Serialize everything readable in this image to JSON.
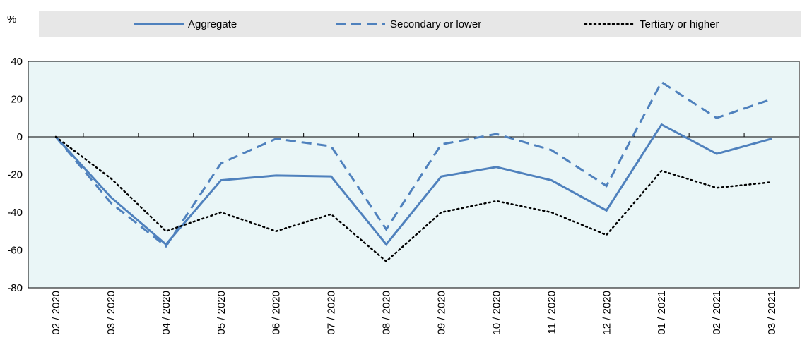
{
  "chart_data": {
    "type": "line",
    "unit_label": "%",
    "title": "",
    "xlabel": "",
    "ylabel": "",
    "categories": [
      "02 / 2020",
      "03 / 2020",
      "04 / 2020",
      "05 / 2020",
      "06 / 2020",
      "07 / 2020",
      "08 / 2020",
      "09 / 2020",
      "10 / 2020",
      "11 / 2020",
      "12 / 2020",
      "01 / 2021",
      "02 / 2021",
      "03 / 2021"
    ],
    "ylim": [
      -80,
      40
    ],
    "yticks": [
      "40",
      "20",
      "0",
      "-20",
      "-40",
      "-60",
      "-80"
    ],
    "grid": false,
    "legend_position": "top",
    "series": [
      {
        "name": "Aggregate",
        "style": "solid",
        "color": "#4f81bd",
        "values": [
          0,
          -32,
          -57,
          -23,
          -20.5,
          -21,
          -57,
          -21,
          -16,
          -23,
          -39,
          6.5,
          -9,
          -1
        ]
      },
      {
        "name": "Secondary or lower",
        "style": "dashed",
        "color": "#4f81bd",
        "values": [
          0,
          -35,
          -58,
          -14,
          -1,
          -5,
          -49,
          -4,
          1.5,
          -7,
          -26,
          29,
          10,
          20
        ]
      },
      {
        "name": "Tertiary or higher",
        "style": "dotted",
        "color": "#000000",
        "values": [
          0,
          -22,
          -50,
          -40,
          -50,
          -41,
          -66,
          -40,
          -34,
          -40,
          -52,
          -18,
          -27,
          -24
        ]
      }
    ]
  },
  "colors": {
    "plot_background": "#eaf6f7",
    "legend_background": "#e7e7e7",
    "axis": "#000000"
  }
}
